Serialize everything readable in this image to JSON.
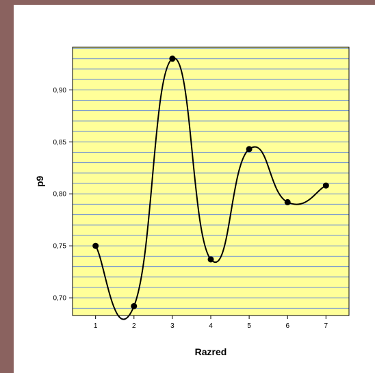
{
  "chart_data": {
    "type": "line",
    "x": [
      1,
      2,
      3,
      4,
      5,
      6,
      7
    ],
    "categories": [
      "1",
      "2",
      "3",
      "4",
      "5",
      "6",
      "7"
    ],
    "values": [
      0.75,
      0.692,
      0.93,
      0.737,
      0.843,
      0.792,
      0.808
    ],
    "xlabel": "Razred",
    "ylabel": "p9",
    "xlim": [
      0.4,
      7.6
    ],
    "ylim": [
      0.683,
      0.941
    ],
    "yticks": [
      0.7,
      0.75,
      0.8,
      0.85,
      0.9
    ],
    "ytick_labels": [
      "0,70",
      "0,75",
      "0,80",
      "0,85",
      "0,90"
    ],
    "grid": "horizontal",
    "line_style": "smooth-interpolated",
    "colors": {
      "plot_background": "#ffff99",
      "grid_line": "#6b8fd6",
      "line": "#000000",
      "marker": "#000000",
      "outer_frame": "#8a625f"
    }
  }
}
